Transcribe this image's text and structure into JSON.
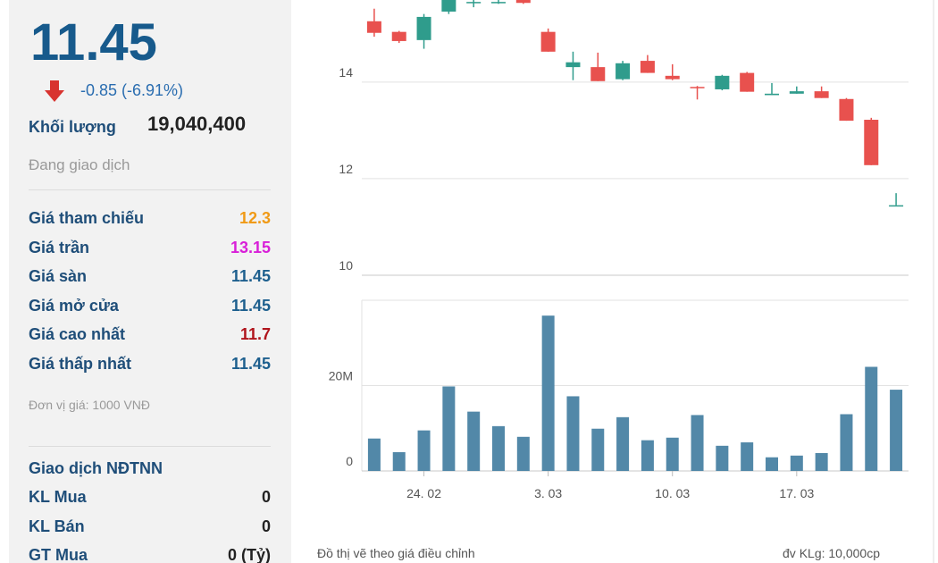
{
  "quote": {
    "price": "11.45",
    "change": "-0.85 (-6.91%)",
    "volume_label": "Khối lượng",
    "volume": "19,040,400",
    "status": "Đang giao dịch",
    "prices": [
      {
        "label": "Giá tham chiếu",
        "value": "12.3",
        "color": "#f09a16"
      },
      {
        "label": "Giá trần",
        "value": "13.15",
        "color": "#d81fd8"
      },
      {
        "label": "Giá sàn",
        "value": "11.45",
        "color": "#1d5f8e"
      },
      {
        "label": "Giá mở cửa",
        "value": "11.45",
        "color": "#1d5f8e"
      },
      {
        "label": "Giá cao nhất",
        "value": "11.7",
        "color": "#b0141c"
      },
      {
        "label": "Giá thấp nhất",
        "value": "11.45",
        "color": "#1d5f8e"
      }
    ],
    "unit_note": "Đơn vị giá: 1000 VNĐ",
    "foreign": {
      "title": "Giao dịch NĐTNN",
      "rows": [
        [
          "KL Mua",
          "0"
        ],
        [
          "KL Bán",
          "0"
        ],
        [
          "GT Mua",
          "0 (Tỷ)"
        ]
      ]
    }
  },
  "chart_notes": {
    "footnote": "Đồ thị vẽ theo giá điều chỉnh",
    "volume_unit": "đv KLg: 10,000cp"
  },
  "chart_data": [
    {
      "type": "candlestick",
      "up_color": "#2f9c8c",
      "down_color": "#e8514e",
      "grid": true,
      "open": [
        15.26,
        15.04,
        14.87,
        15.46,
        15.64,
        15.64,
        15.7,
        15.04,
        14.31,
        14.31,
        14.06,
        14.44,
        14.13,
        13.9,
        13.85,
        14.19,
        13.73,
        13.76,
        13.81,
        13.65,
        13.22,
        11.45
      ],
      "high": [
        15.52,
        15.06,
        15.41,
        15.7,
        15.7,
        15.7,
        15.7,
        15.11,
        14.63,
        14.61,
        14.44,
        14.56,
        14.37,
        13.92,
        14.15,
        14.21,
        13.98,
        13.91,
        13.91,
        13.67,
        13.26,
        11.7
      ],
      "low": [
        14.94,
        14.81,
        14.69,
        15.41,
        15.55,
        15.62,
        15.62,
        14.63,
        14.04,
        14.02,
        14.04,
        14.19,
        14.04,
        13.64,
        13.83,
        13.8,
        13.73,
        13.76,
        13.67,
        13.2,
        12.28,
        11.45
      ],
      "close": [
        15.02,
        14.85,
        15.35,
        15.7,
        15.66,
        15.66,
        15.64,
        14.63,
        14.41,
        14.02,
        14.39,
        14.19,
        14.06,
        13.89,
        14.13,
        13.8,
        13.76,
        13.81,
        13.67,
        13.2,
        12.28,
        11.45
      ],
      "ylim": [
        10,
        15.7
      ],
      "yticks": [
        10,
        12,
        14
      ]
    },
    {
      "type": "bar",
      "color": "#5288a8",
      "grid": true,
      "categories": [
        null,
        null,
        "24. 02",
        null,
        null,
        null,
        null,
        "3. 03",
        null,
        null,
        null,
        null,
        "10. 03",
        null,
        null,
        null,
        null,
        "17. 03",
        null,
        null,
        null,
        null
      ],
      "values": [
        7600000,
        4400000,
        9500000,
        19800000,
        13900000,
        10500000,
        8000000,
        36400000,
        17500000,
        9900000,
        12600000,
        7200000,
        7800000,
        13100000,
        5900000,
        6700000,
        3200000,
        3600000,
        4200000,
        13300000,
        24400000,
        19040400
      ],
      "ylim": [
        0,
        40000000
      ],
      "yticks": [
        0,
        {
          "value": 20000000,
          "label": "20M"
        }
      ]
    }
  ]
}
